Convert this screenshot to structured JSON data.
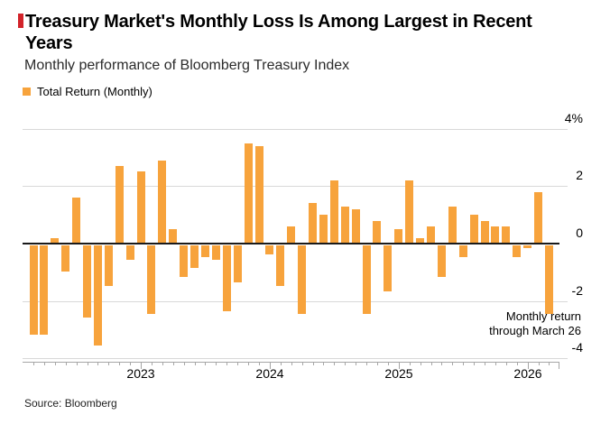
{
  "header": {
    "title": "Treasury Market's Monthly Loss Is Among Largest in Recent Years",
    "subtitle": "Monthly performance of Bloomberg Treasury Index",
    "legend_label": "Total Return (Monthly)"
  },
  "annotation": {
    "line1": "Monthly return",
    "line2": "through March 26"
  },
  "footer": {
    "source": "Source: Bloomberg"
  },
  "colors": {
    "bar_orange": "#f7a33c",
    "accent_red": "#d2232a",
    "gridline_gray": "#d8d8d8",
    "zero_line_black": "#1a1a1a",
    "axis_gray": "#a6a6a6"
  },
  "chart_data": {
    "type": "bar",
    "title": "Treasury Market's Monthly Loss Is Among Largest in Recent Years",
    "subtitle": "Monthly performance of Bloomberg Treasury Index",
    "series_name": "Total Return (Monthly)",
    "unit": "%",
    "ylim": [
      -4,
      4
    ],
    "grid": true,
    "legend_position": "top-left",
    "yticks": [
      {
        "value": 4,
        "label": "4%"
      },
      {
        "value": 2,
        "label": "2"
      },
      {
        "value": 0,
        "label": "0"
      },
      {
        "value": -2,
        "label": "-2"
      },
      {
        "value": -4,
        "label": "-4"
      }
    ],
    "xticks": [
      {
        "label": "2023",
        "month_index": 10
      },
      {
        "label": "2024",
        "month_index": 22
      },
      {
        "label": "2025",
        "month_index": 34
      },
      {
        "label": "2026",
        "month_index": 46
      }
    ],
    "x": [
      "Mar 2022",
      "Apr 2022",
      "May 2022",
      "Jun 2022",
      "Jul 2022",
      "Aug 2022",
      "Sep 2022",
      "Oct 2022",
      "Nov 2022",
      "Dec 2022",
      "Jan 2023",
      "Feb 2023",
      "Mar 2023",
      "Apr 2023",
      "May 2023",
      "Jun 2023",
      "Jul 2023",
      "Aug 2023",
      "Sep 2023",
      "Oct 2023",
      "Nov 2023",
      "Dec 2023",
      "Jan 2024",
      "Feb 2024",
      "Mar 2024",
      "Apr 2024",
      "May 2024",
      "Jun 2024",
      "Jul 2024",
      "Aug 2024",
      "Sep 2024",
      "Oct 2024",
      "Nov 2024",
      "Dec 2024",
      "Jan 2025",
      "Feb 2025",
      "Mar 2025",
      "Apr 2025",
      "May 2025",
      "Jun 2025",
      "Jul 2025",
      "Aug 2025",
      "Sep 2025",
      "Oct 2025",
      "Nov 2025",
      "Dec 2025",
      "Jan 2026",
      "Feb 2026",
      "Mar 2026"
    ],
    "values": [
      -3.1,
      -3.1,
      0.2,
      -0.9,
      1.6,
      -2.5,
      -3.5,
      -1.4,
      2.7,
      -0.5,
      2.5,
      -2.4,
      2.9,
      0.5,
      -1.1,
      -0.8,
      -0.4,
      -0.5,
      -2.3,
      -1.3,
      3.5,
      3.4,
      -0.3,
      -1.4,
      0.6,
      -2.4,
      1.4,
      1.0,
      2.2,
      1.3,
      1.2,
      -2.4,
      0.8,
      -1.6,
      0.5,
      2.2,
      0.2,
      0.6,
      -1.1,
      1.3,
      -0.4,
      1.0,
      0.8,
      0.6,
      0.6,
      -0.4,
      -0.1,
      1.8,
      -2.4
    ],
    "bar_color": "#f7a33c",
    "annotation": "Monthly return through March 26",
    "source": "Source: Bloomberg"
  }
}
